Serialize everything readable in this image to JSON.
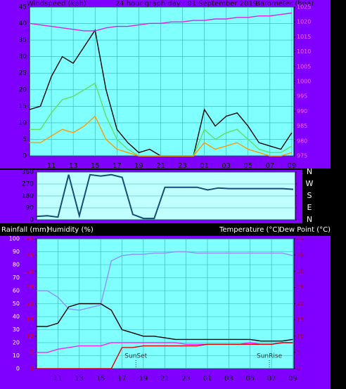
{
  "chart_data": [
    {
      "type": "line",
      "title": "24 hour graph day : 01 September 2019",
      "y_label": "Windspeed (kph)",
      "y2_label": "Barometer (hpa)",
      "x": [
        9,
        10,
        11,
        12,
        13,
        14,
        15,
        16,
        17,
        18,
        19,
        20,
        21,
        22,
        23,
        24,
        25,
        26,
        27,
        28,
        29,
        30,
        31,
        32,
        33
      ],
      "xlim": [
        9,
        33.2
      ],
      "xticks": [
        11,
        13,
        15,
        17,
        19,
        21,
        23,
        {
          "value": 25,
          "label": "01"
        },
        {
          "value": 27,
          "label": "03"
        },
        {
          "value": 29,
          "label": "05"
        },
        {
          "value": 31,
          "label": "07"
        },
        {
          "value": 33,
          "label": "09"
        }
      ],
      "ylim": [
        0,
        45
      ],
      "yticks": [
        0,
        5,
        10,
        15,
        20,
        25,
        30,
        35,
        40,
        45
      ],
      "y2lim": [
        975,
        1025
      ],
      "y2ticks": [
        975,
        980,
        985,
        990,
        995,
        1000,
        1005,
        1010,
        1015,
        1020,
        1025
      ],
      "grid": true,
      "series": [
        {
          "color": "#000000",
          "values": [
            14,
            15,
            24,
            30,
            28,
            33,
            38,
            20,
            8,
            4,
            1,
            2,
            0,
            0,
            0,
            0,
            14,
            9,
            12,
            13,
            9,
            4,
            3,
            2,
            7
          ]
        },
        {
          "color": "#60e060",
          "values": [
            8,
            8,
            13,
            17,
            18,
            20,
            22,
            12,
            5,
            2,
            0,
            0,
            0,
            0,
            0,
            0,
            8,
            5,
            7,
            8,
            5,
            2,
            1,
            1,
            3
          ]
        },
        {
          "color": "#ff9900",
          "values": [
            4,
            4,
            6,
            8,
            7,
            9,
            12,
            5,
            2,
            1,
            0,
            0,
            0,
            0,
            0,
            0,
            4,
            2,
            3,
            4,
            2,
            1,
            0,
            0,
            1
          ]
        },
        {
          "color": "#e020e0",
          "axis": "y2",
          "values": [
            1019.5,
            1019,
            1018.5,
            1018,
            1017.5,
            1017,
            1017,
            1018,
            1018.5,
            1018.5,
            1019,
            1019.5,
            1019.5,
            1020,
            1020,
            1020.5,
            1020.5,
            1021,
            1021,
            1021.5,
            1021.5,
            1022,
            1022,
            1022.5,
            1023
          ]
        }
      ]
    },
    {
      "type": "line",
      "x": [
        9,
        10,
        11,
        12,
        13,
        14,
        15,
        16,
        17,
        18,
        19,
        20,
        21,
        22,
        23,
        24,
        25,
        26,
        27,
        28,
        29,
        30,
        31,
        32,
        33
      ],
      "xlim": [
        9,
        33.2
      ],
      "ylim": [
        0,
        360
      ],
      "yticks": [
        0,
        90,
        180,
        270,
        360
      ],
      "y2lim": [
        0,
        360
      ],
      "y2ticks": [
        {
          "value": 360,
          "label": "N"
        },
        {
          "value": 270,
          "label": "W"
        },
        {
          "value": 180,
          "label": "S"
        },
        {
          "value": 90,
          "label": "E"
        },
        {
          "value": 0,
          "label": "N"
        }
      ],
      "grid": true,
      "series": [
        {
          "color": "#104e78",
          "values": [
            25,
            30,
            20,
            340,
            30,
            340,
            330,
            340,
            320,
            40,
            10,
            10,
            245,
            245,
            245,
            245,
            225,
            240,
            235,
            235,
            235,
            235,
            235,
            235,
            230
          ]
        }
      ]
    },
    {
      "type": "line",
      "y_label": "Humidity (%)",
      "y3_label": "Rainfall (mm)",
      "y2_labels": [
        "Temperature (°C)",
        "Dew Point (°C)"
      ],
      "x": [
        9,
        10,
        11,
        12,
        13,
        14,
        15,
        16,
        17,
        18,
        19,
        20,
        21,
        22,
        23,
        24,
        25,
        26,
        27,
        28,
        29,
        30,
        31,
        32,
        33
      ],
      "xlim": [
        9,
        33.1
      ],
      "xticks": [
        11,
        13,
        15,
        17,
        19,
        21,
        23,
        {
          "value": 25,
          "label": "01"
        },
        {
          "value": 27,
          "label": "03"
        },
        {
          "value": 29,
          "label": "05"
        },
        {
          "value": 31,
          "label": "07"
        },
        {
          "value": 33,
          "label": "09"
        }
      ],
      "ylim": [
        0,
        100
      ],
      "yticks": [
        0,
        10,
        20,
        30,
        40,
        50,
        60,
        70,
        80,
        90,
        100
      ],
      "y2lim": [
        0,
        40
      ],
      "y2ticks": [
        0,
        5,
        10,
        15,
        20,
        25,
        30,
        35,
        40
      ],
      "y3lim": [
        0,
        40
      ],
      "y3ticks": [
        0,
        5,
        10,
        15,
        20,
        25,
        30,
        35,
        40
      ],
      "grid": true,
      "series": [
        {
          "color": "#9090ff",
          "values": [
            60,
            60,
            55,
            46,
            45,
            47,
            49,
            83,
            87,
            88,
            88,
            89,
            89,
            90,
            90,
            89,
            89,
            89,
            89,
            89,
            89,
            89,
            89,
            89,
            87
          ]
        },
        {
          "color": "#000000",
          "axis": "y2",
          "values": [
            13,
            13,
            14,
            19,
            20,
            20,
            20,
            18,
            12,
            11,
            10,
            10,
            9.5,
            9,
            9,
            9,
            9,
            9,
            9,
            9,
            9,
            8.5,
            8.5,
            8.5,
            9
          ]
        },
        {
          "color": "#ff20ff",
          "axis": "y2",
          "values": [
            5,
            5,
            6,
            6.5,
            7,
            7,
            7,
            8,
            8,
            8,
            8,
            8,
            8,
            8,
            7.5,
            7.5,
            7.5,
            7.5,
            7.5,
            7.5,
            8,
            7.5,
            7.5,
            8,
            8
          ]
        },
        {
          "color": "#e00000",
          "axis": "y3",
          "values": [
            0,
            0,
            0,
            0,
            0,
            0,
            0,
            0,
            6.5,
            6.5,
            7,
            7,
            7,
            7,
            7,
            7,
            7.5,
            7.5,
            7.5,
            7.5,
            7.5,
            7.5,
            7.5,
            8,
            8
          ]
        }
      ],
      "annotations": [
        {
          "text": "SunSet",
          "x": 18.3
        },
        {
          "text": "SunRise",
          "x": 30.8
        }
      ]
    }
  ]
}
